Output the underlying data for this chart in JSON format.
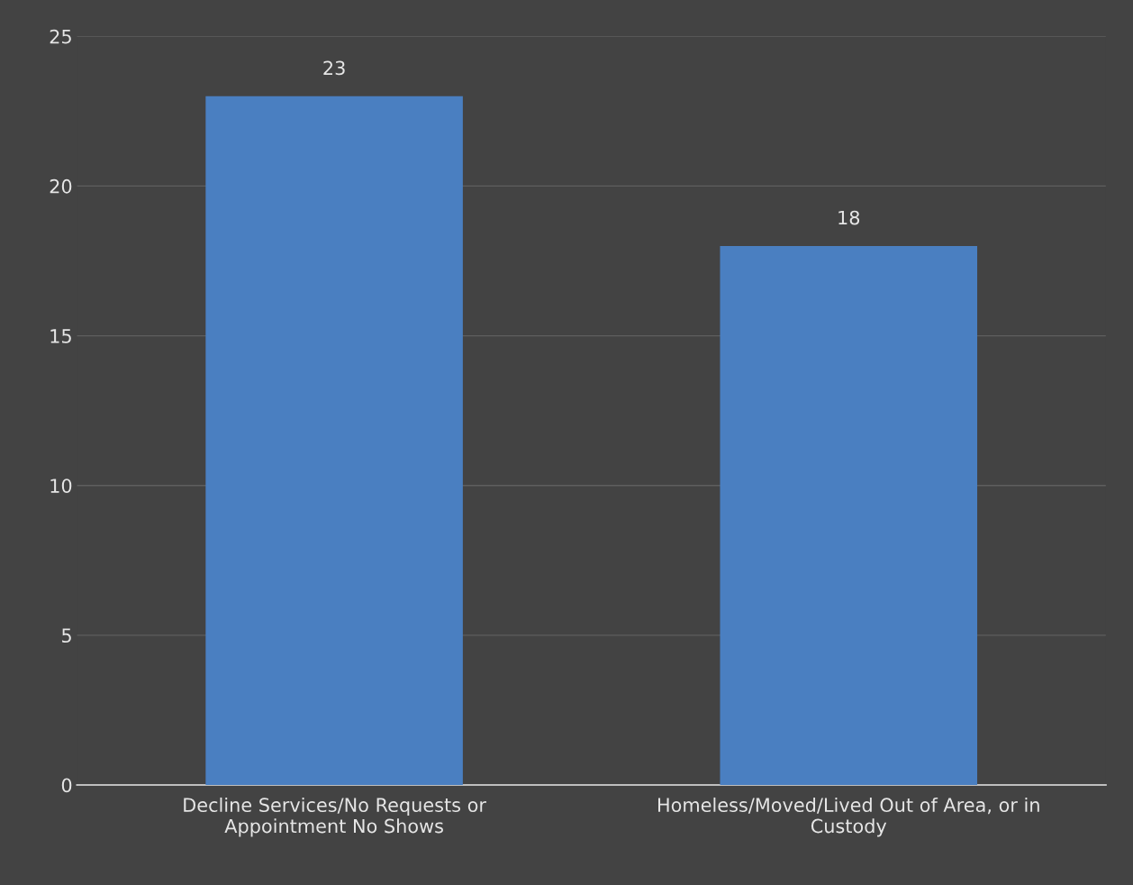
{
  "chart_data": {
    "type": "bar",
    "categories": [
      "Decline Services/No Requests or\nAppointment No Shows",
      "Homeless/Moved/Lived Out of Area, or in\nCustody"
    ],
    "values": [
      23,
      18
    ],
    "color": "#4a7fc1",
    "ylim": [
      0,
      25
    ],
    "yticks": [
      0,
      5,
      10,
      15,
      20,
      25
    ],
    "grid": "y",
    "data_labels": true
  }
}
